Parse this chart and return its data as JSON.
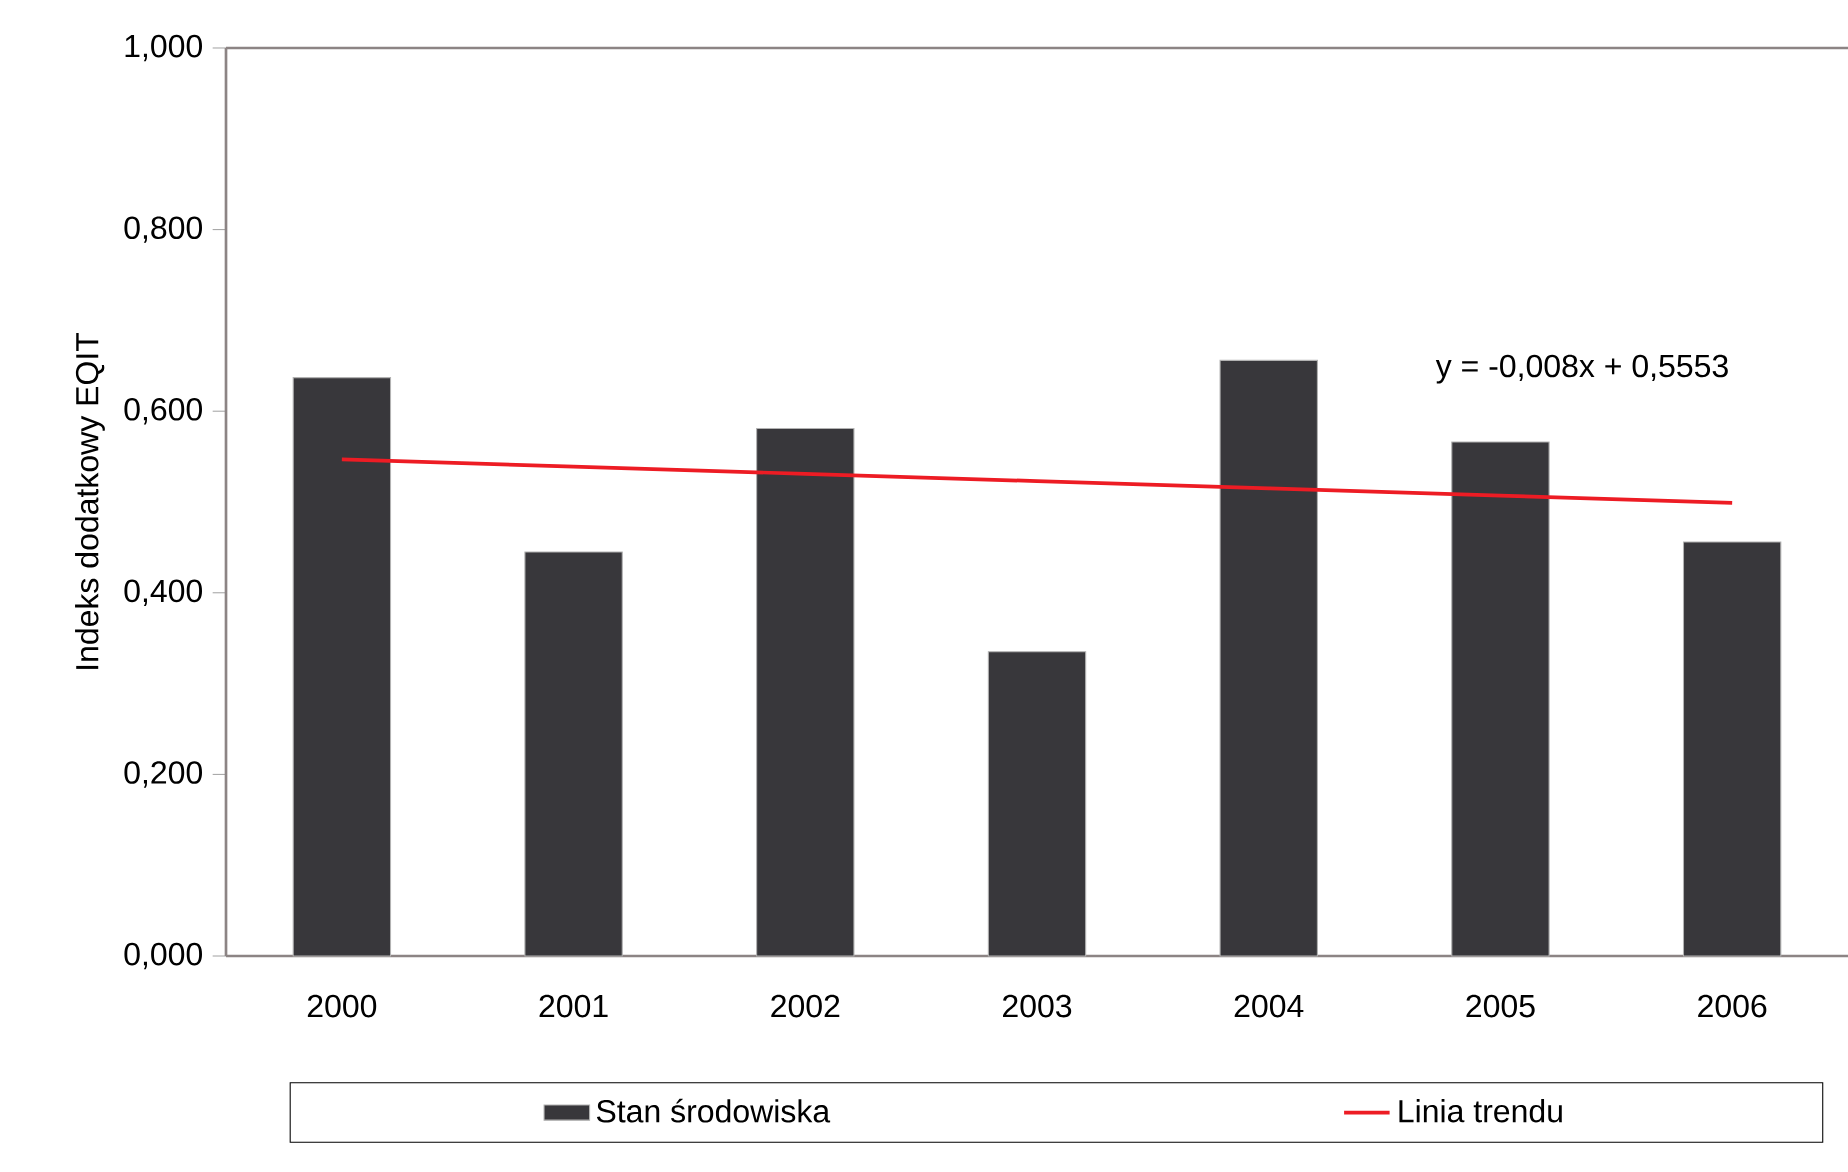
{
  "chart_data": {
    "type": "bar",
    "ylabel": "Indeks dodatkowy EQIT",
    "categories": [
      "2000",
      "2001",
      "2002",
      "2003",
      "2004",
      "2005",
      "2006"
    ],
    "series": [
      {
        "name": "Stan środowiska",
        "color": "#38373b",
        "values": [
          0.637,
          0.445,
          0.581,
          0.335,
          0.656,
          0.566,
          0.456
        ]
      },
      {
        "name": "Linia trendu",
        "type": "line",
        "color": "#ed1c24",
        "values": [
          0.547,
          0.539,
          0.531,
          0.523,
          0.515,
          0.507,
          0.499
        ]
      }
    ],
    "ylim": [
      0,
      1
    ],
    "yticks": [
      {
        "value": 0,
        "label": "0,000"
      },
      {
        "value": 0.2,
        "label": "0,200"
      },
      {
        "value": 0.4,
        "label": "0,400"
      },
      {
        "value": 0.6,
        "label": "0,600"
      },
      {
        "value": 0.8,
        "label": "0,800"
      },
      {
        "value": 1,
        "label": "1,000"
      }
    ],
    "annotations": [
      "y = -0,008x + 0,5553"
    ],
    "legend": "bottom",
    "grid": false,
    "marker": "none",
    "line_style": "solid"
  }
}
